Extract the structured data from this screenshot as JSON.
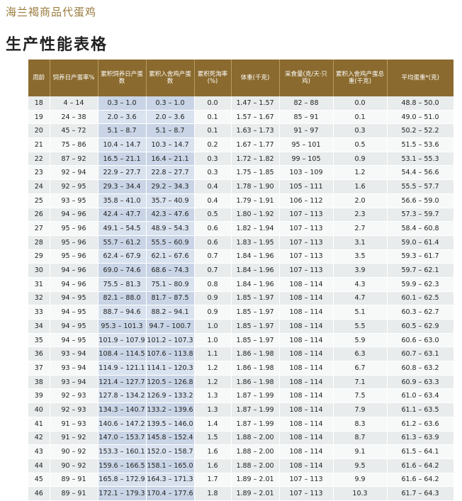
{
  "brand": "海兰褐商品代蛋鸡",
  "title": "生产性能表格",
  "columns": [
    {
      "key": "week",
      "label": "周龄"
    },
    {
      "key": "rate",
      "label": "饲养日产蛋率%"
    },
    {
      "key": "hd",
      "label": "累积饲养日产蛋数"
    },
    {
      "key": "hh",
      "label": "累积入舍鸡产蛋数"
    },
    {
      "key": "mort",
      "label": "累积死淘率(%)"
    },
    {
      "key": "bw",
      "label": "体重(千克)"
    },
    {
      "key": "feed",
      "label": "采食量(克/天·只鸡)"
    },
    {
      "key": "mass",
      "label": "累积入舍鸡产蛋总重(千克)"
    },
    {
      "key": "ew",
      "label": "平均蛋重*(克)"
    }
  ],
  "rows": [
    [
      "18",
      "4 – 14",
      "0.3 – 1.0",
      "0.3 – 1.0",
      "0.0",
      "1.47 – 1.57",
      "82 – 88",
      "0.0",
      "48.8 – 50.0"
    ],
    [
      "19",
      "24 – 38",
      "2.0 – 3.6",
      "2.0 – 3.6",
      "0.1",
      "1.57 – 1.67",
      "85 – 91",
      "0.1",
      "49.0 – 51.0"
    ],
    [
      "20",
      "45 – 72",
      "5.1 – 8.7",
      "5.1 – 8.7",
      "0.1",
      "1.63 – 1.73",
      "91 – 97",
      "0.3",
      "50.2 – 52.2"
    ],
    [
      "21",
      "75 – 86",
      "10.4 – 14.7",
      "10.3 – 14.7",
      "0.2",
      "1.67 – 1.77",
      "95 – 101",
      "0.5",
      "51.5 – 53.6"
    ],
    [
      "22",
      "87 – 92",
      "16.5 – 21.1",
      "16.4 – 21.1",
      "0.3",
      "1.72 – 1.82",
      "99 – 105",
      "0.9",
      "53.1 – 55.3"
    ],
    [
      "23",
      "92 – 94",
      "22.9 – 27.7",
      "22.8 – 27.7",
      "0.3",
      "1.75 – 1.85",
      "103 – 109",
      "1.2",
      "54.4 – 56.6"
    ],
    [
      "24",
      "92 – 95",
      "29.3 – 34.4",
      "29.2 – 34.3",
      "0.4",
      "1.78 – 1.90",
      "105 – 111",
      "1.6",
      "55.5 – 57.7"
    ],
    [
      "25",
      "93 – 95",
      "35.8 – 41.0",
      "35.7 – 40.9",
      "0.4",
      "1.79 – 1.91",
      "106 – 112",
      "2.0",
      "56.6 – 59.0"
    ],
    [
      "26",
      "94 – 96",
      "42.4 – 47.7",
      "42.3 – 47.6",
      "0.5",
      "1.80 – 1.92",
      "107 – 113",
      "2.3",
      "57.3 – 59.7"
    ],
    [
      "27",
      "95 – 96",
      "49.1 – 54.5",
      "48.9 – 54.3",
      "0.6",
      "1.82 – 1.94",
      "107 – 113",
      "2.7",
      "58.4 – 60.8"
    ],
    [
      "28",
      "95 – 96",
      "55.7 – 61.2",
      "55.5 – 60.9",
      "0.6",
      "1.83 – 1.95",
      "107 – 113",
      "3.1",
      "59.0 – 61.4"
    ],
    [
      "29",
      "95 – 96",
      "62.4 – 67.9",
      "62.1 – 67.6",
      "0.7",
      "1.84 – 1.96",
      "107 – 113",
      "3.5",
      "59.3 – 61.7"
    ],
    [
      "30",
      "94 – 96",
      "69.0 – 74.6",
      "68.6 – 74.3",
      "0.7",
      "1.84 – 1.96",
      "107 – 113",
      "3.9",
      "59.7 – 62.1"
    ],
    [
      "31",
      "94 – 96",
      "75.5 – 81.3",
      "75.1 – 80.9",
      "0.8",
      "1.84 – 1.96",
      "108 – 114",
      "4.3",
      "59.9 – 62.3"
    ],
    [
      "32",
      "94 – 95",
      "82.1 – 88.0",
      "81.7 – 87.5",
      "0.9",
      "1.85 – 1.97",
      "108 – 114",
      "4.7",
      "60.1 – 62.5"
    ],
    [
      "33",
      "94 – 95",
      "88.7 – 94.6",
      "88.2 – 94.1",
      "0.9",
      "1.85 – 1.97",
      "108 – 114",
      "5.1",
      "60.3 – 62.7"
    ],
    [
      "34",
      "94 – 95",
      "95.3 – 101.3",
      "94.7 – 100.7",
      "1.0",
      "1.85 – 1.97",
      "108 – 114",
      "5.5",
      "60.5 – 62.9"
    ],
    [
      "35",
      "94 – 95",
      "101.9 – 107.9",
      "101.2 – 107.3",
      "1.0",
      "1.85 – 1.97",
      "108 – 114",
      "5.9",
      "60.6 – 63.0"
    ],
    [
      "36",
      "93 – 94",
      "108.4 – 114.5",
      "107.6 – 113.8",
      "1.1",
      "1.86 – 1.98",
      "108 – 114",
      "6.3",
      "60.7 – 63.1"
    ],
    [
      "37",
      "93 – 94",
      "114.9 – 121.1",
      "114.1 – 120.3",
      "1.2",
      "1.86 – 1.98",
      "108 – 114",
      "6.7",
      "60.8 – 63.2"
    ],
    [
      "38",
      "93 – 94",
      "121.4 – 127.7",
      "120.5 – 126.8",
      "1.2",
      "1.86 – 1.98",
      "108 – 114",
      "7.1",
      "60.9 – 63.3"
    ],
    [
      "39",
      "92 – 93",
      "127.8 – 134.2",
      "126.9 – 133.2",
      "1.3",
      "1.87 – 1.99",
      "108 – 114",
      "7.5",
      "61.0 – 63.4"
    ],
    [
      "40",
      "92 – 93",
      "134.3 – 140.7",
      "133.2 – 139.6",
      "1.3",
      "1.87 – 1.99",
      "108 – 114",
      "7.9",
      "61.1 – 63.5"
    ],
    [
      "41",
      "91 – 93",
      "140.6 – 147.2",
      "139.5 – 146.0",
      "1.4",
      "1.87 – 1.99",
      "108 – 114",
      "8.3",
      "61.2 – 63.6"
    ],
    [
      "42",
      "91 – 92",
      "147.0 – 153.7",
      "145.8 – 152.4",
      "1.5",
      "1.88 – 2.00",
      "108 – 114",
      "8.7",
      "61.3 – 63.9"
    ],
    [
      "43",
      "90 – 92",
      "153.3 – 160.1",
      "152.0 – 158.7",
      "1.6",
      "1.88 – 2.00",
      "108 – 114",
      "9.1",
      "61.5 – 64.1"
    ],
    [
      "44",
      "90 – 92",
      "159.6 – 166.5",
      "158.1 – 165.0",
      "1.6",
      "1.88 – 2.00",
      "108 – 114",
      "9.5",
      "61.6 – 64.2"
    ],
    [
      "45",
      "89 – 91",
      "165.8 – 172.9",
      "164.3 – 171.3",
      "1.7",
      "1.89 – 2.01",
      "107 – 113",
      "9.9",
      "61.6 – 64.2"
    ],
    [
      "46",
      "89 – 91",
      "172.1 – 179.3",
      "170.4 – 177.6",
      "1.8",
      "1.89 – 2.01",
      "107 – 113",
      "10.3",
      "61.7 – 64.3"
    ]
  ]
}
